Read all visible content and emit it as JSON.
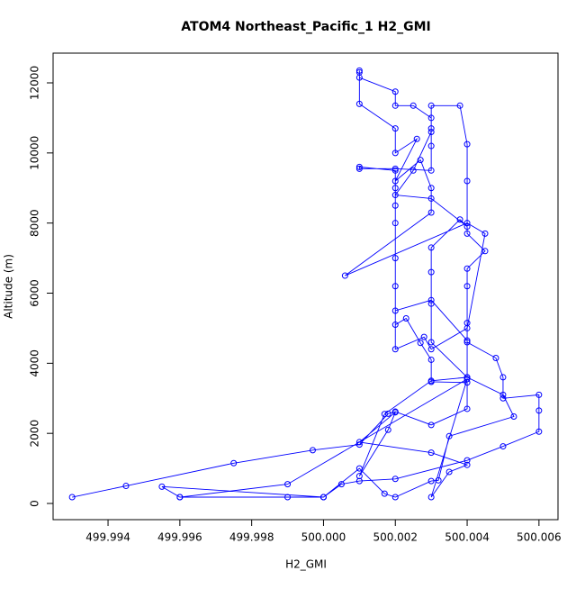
{
  "chart_data": {
    "type": "line",
    "marker": "open-circle",
    "title": "ATOM4 Northeast_Pacific_1 H2_GMI",
    "x_label": "H2_GMI",
    "y_label": "Altitude (m)",
    "color": "#0000ff",
    "x": [
      499.993,
      499.9945,
      499.9975,
      499.9997,
      500.001,
      500.0018,
      500.002,
      500.003,
      500.004,
      500.004,
      500.003,
      500.003,
      500.0027,
      500.0023,
      500.002,
      500.002,
      500.002,
      500.002,
      500.002,
      500.002,
      500.002,
      500.001,
      500.001,
      500.002,
      500.003,
      500.003,
      500.003,
      500.003,
      500.0038,
      500.004,
      500.004,
      500.004,
      500.0045,
      500.004,
      500.004,
      500.004,
      500.004,
      500.0048,
      500.005,
      500.005,
      500.006,
      500.006,
      500.006,
      500.005,
      500.004,
      500.002,
      500.001,
      500.0005,
      500.0,
      499.999,
      499.996,
      499.9955,
      500.0,
      500.001,
      500.0017,
      500.002,
      500.003,
      500.0032,
      500.0035,
      500.0053,
      500.005,
      500.004,
      500.003,
      500.003,
      500.003,
      500.003,
      500.0038,
      500.004,
      500.003,
      500.002,
      500.0025,
      500.003,
      500.003,
      500.0025,
      500.002,
      500.002,
      500.001,
      500.001,
      500.001,
      500.001,
      500.002,
      500.002,
      500.0026,
      500.002,
      500.0027,
      500.003,
      500.003,
      500.0006,
      500.004,
      500.0045,
      500.004,
      500.003,
      500.0028,
      500.002,
      500.002,
      500.003,
      500.004,
      500.004,
      500.003,
      500.0017,
      500.001,
      500.0018,
      500.002,
      500.001,
      500.003,
      500.004,
      500.0035,
      500.003,
      500.004,
      499.999,
      499.996
    ],
    "y": [
      180,
      500,
      1150,
      1520,
      1680,
      2560,
      2620,
      2240,
      2700,
      3450,
      3470,
      4100,
      4580,
      5280,
      5100,
      6200,
      7000,
      8000,
      8500,
      9000,
      9500,
      9600,
      9550,
      9550,
      9500,
      10200,
      10700,
      11350,
      11350,
      10250,
      9200,
      7700,
      7200,
      6700,
      6200,
      5150,
      4600,
      4150,
      3600,
      3000,
      3100,
      2650,
      2050,
      1630,
      1230,
      700,
      640,
      550,
      180,
      180,
      180,
      480,
      180,
      1000,
      280,
      180,
      640,
      660,
      1920,
      2480,
      3100,
      3600,
      4600,
      5700,
      6600,
      7300,
      8100,
      7900,
      8700,
      8800,
      9500,
      10600,
      11000,
      11350,
      11350,
      11750,
      12150,
      12300,
      12350,
      11400,
      10700,
      10000,
      10400,
      9200,
      9800,
      9000,
      8300,
      6500,
      8000,
      7700,
      5000,
      4400,
      4750,
      4400,
      5500,
      5800,
      4650,
      3600,
      3500,
      2550,
      780,
      2100,
      2600,
      1750,
      1450,
      1100,
      900,
      180,
      3550,
      550,
      180
    ],
    "xlim": [
      499.99247,
      500.00653
    ],
    "ylim": [
      -462,
      12848
    ],
    "xticks": [
      499.994,
      499.996,
      499.998,
      {
        "value": 500,
        "label": "500.000"
      },
      500.002,
      500.004,
      500.006
    ],
    "yticks": [
      0,
      2000,
      4000,
      6000,
      8000,
      10000,
      12000
    ]
  }
}
